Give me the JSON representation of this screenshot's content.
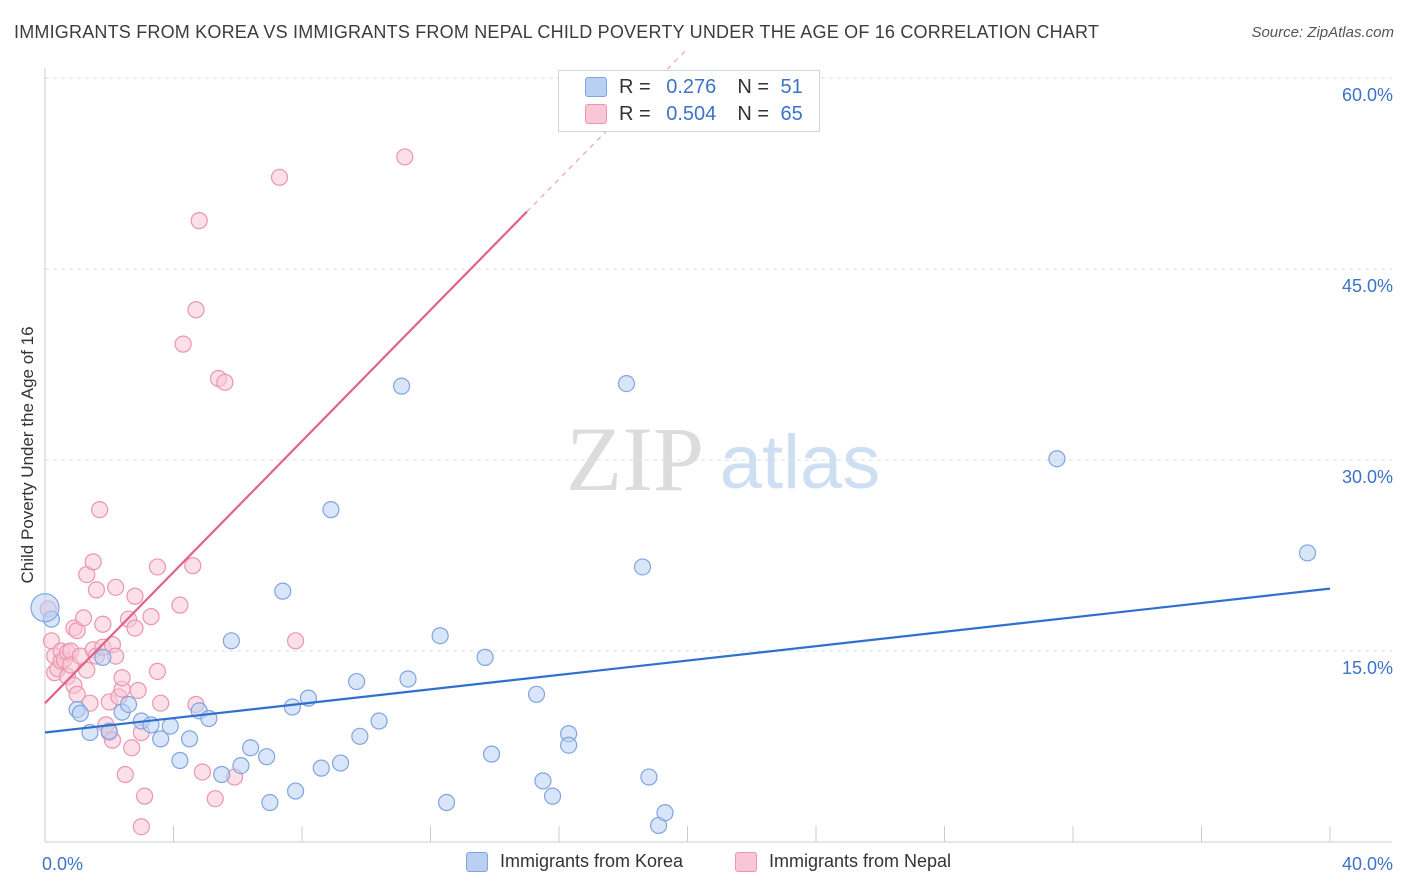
{
  "header": {
    "title": "IMMIGRANTS FROM KOREA VS IMMIGRANTS FROM NEPAL CHILD POVERTY UNDER THE AGE OF 16 CORRELATION CHART",
    "source": "Source: ZipAtlas.com"
  },
  "watermark": {
    "zip": "ZIP",
    "atlas": "atlas"
  },
  "legend": {
    "korea": {
      "r_label": "R =",
      "r_value": "0.276",
      "n_label": "N =",
      "n_value": "51"
    },
    "nepal": {
      "r_label": "R =",
      "r_value": "0.504",
      "n_label": "N =",
      "n_value": "65"
    }
  },
  "colors": {
    "korea_fill": "#b9d0f3",
    "korea_stroke": "#7fa5e0",
    "korea_line": "#2f6fcf",
    "nepal_fill": "#f8c6d6",
    "nepal_stroke": "#ec94b2",
    "nepal_line": "#e0628c",
    "tick_label": "#3b73c9"
  },
  "chart_data": {
    "type": "scatter",
    "title": "IMMIGRANTS FROM KOREA VS IMMIGRANTS FROM NEPAL CHILD POVERTY UNDER THE AGE OF 16 CORRELATION CHART",
    "xlabel": "",
    "ylabel": "Child Poverty Under the Age of 16",
    "xlim": [
      0,
      40
    ],
    "ylim": [
      0,
      60
    ],
    "x_tick_labels": [
      "0.0%",
      "40.0%"
    ],
    "y_ticks": [
      15,
      30,
      45,
      60
    ],
    "y_tick_labels": [
      "15.0%",
      "30.0%",
      "45.0%",
      "60.0%"
    ],
    "grid": true,
    "legend_position": "top-center",
    "series": [
      {
        "name": "Immigrants from Korea",
        "r": 0.276,
        "n": 51,
        "trend": {
          "x": [
            0,
            40
          ],
          "y": [
            8.6,
            19.9
          ]
        },
        "points": [
          [
            0.2,
            17.5
          ],
          [
            1.0,
            10.4
          ],
          [
            1.1,
            10.1
          ],
          [
            1.4,
            8.6
          ],
          [
            1.8,
            14.5
          ],
          [
            2.0,
            8.7
          ],
          [
            2.4,
            10.2
          ],
          [
            2.6,
            10.8
          ],
          [
            3.0,
            9.5
          ],
          [
            3.3,
            9.2
          ],
          [
            3.6,
            8.1
          ],
          [
            3.9,
            9.1
          ],
          [
            4.2,
            6.4
          ],
          [
            4.5,
            8.1
          ],
          [
            4.8,
            10.3
          ],
          [
            5.1,
            9.7
          ],
          [
            5.5,
            5.3
          ],
          [
            5.8,
            15.8
          ],
          [
            6.1,
            6.0
          ],
          [
            6.4,
            7.4
          ],
          [
            6.9,
            6.7
          ],
          [
            7.0,
            3.1
          ],
          [
            7.4,
            19.7
          ],
          [
            7.7,
            10.6
          ],
          [
            7.8,
            4.0
          ],
          [
            8.2,
            11.3
          ],
          [
            8.6,
            5.8
          ],
          [
            8.9,
            26.1
          ],
          [
            9.2,
            6.2
          ],
          [
            9.7,
            12.6
          ],
          [
            9.8,
            8.3
          ],
          [
            10.4,
            9.5
          ],
          [
            11.1,
            35.8
          ],
          [
            11.3,
            12.8
          ],
          [
            12.3,
            16.2
          ],
          [
            12.5,
            3.1
          ],
          [
            13.7,
            14.5
          ],
          [
            13.9,
            6.9
          ],
          [
            15.3,
            11.6
          ],
          [
            15.5,
            4.8
          ],
          [
            15.8,
            3.6
          ],
          [
            16.3,
            8.5
          ],
          [
            16.3,
            7.6
          ],
          [
            18.1,
            36.0
          ],
          [
            18.6,
            21.6
          ],
          [
            18.8,
            5.1
          ],
          [
            19.1,
            1.3
          ],
          [
            19.3,
            2.3
          ],
          [
            31.5,
            30.1
          ],
          [
            39.3,
            22.7
          ],
          [
            0.0,
            18.4
          ]
        ]
      },
      {
        "name": "Immigrants from Nepal",
        "r": 0.504,
        "n": 65,
        "trend": {
          "x": [
            0,
            15.0
          ],
          "y": [
            10.9,
            49.5
          ]
        },
        "trend_dashed": {
          "x": [
            15.0,
            20.0
          ],
          "y": [
            49.5,
            62.3
          ]
        },
        "points": [
          [
            0.1,
            18.3
          ],
          [
            0.2,
            15.8
          ],
          [
            0.3,
            13.3
          ],
          [
            0.3,
            14.6
          ],
          [
            0.4,
            13.6
          ],
          [
            0.5,
            14.2
          ],
          [
            0.5,
            15.0
          ],
          [
            0.6,
            14.3
          ],
          [
            0.7,
            13.0
          ],
          [
            0.7,
            14.9
          ],
          [
            0.8,
            15.0
          ],
          [
            0.8,
            13.9
          ],
          [
            0.9,
            12.3
          ],
          [
            0.9,
            16.8
          ],
          [
            1.0,
            11.6
          ],
          [
            1.0,
            16.6
          ],
          [
            1.1,
            14.6
          ],
          [
            1.2,
            17.6
          ],
          [
            1.3,
            13.5
          ],
          [
            1.3,
            21.0
          ],
          [
            1.4,
            10.9
          ],
          [
            1.5,
            15.1
          ],
          [
            1.5,
            22.0
          ],
          [
            1.6,
            14.6
          ],
          [
            1.6,
            19.8
          ],
          [
            1.7,
            26.1
          ],
          [
            1.8,
            17.1
          ],
          [
            1.8,
            15.3
          ],
          [
            1.9,
            9.2
          ],
          [
            2.0,
            8.6
          ],
          [
            2.0,
            11.0
          ],
          [
            2.1,
            15.5
          ],
          [
            2.1,
            8.0
          ],
          [
            2.2,
            14.6
          ],
          [
            2.2,
            20.0
          ],
          [
            2.3,
            11.4
          ],
          [
            2.4,
            12.0
          ],
          [
            2.4,
            12.9
          ],
          [
            2.5,
            5.3
          ],
          [
            2.6,
            17.5
          ],
          [
            2.7,
            7.4
          ],
          [
            2.8,
            16.8
          ],
          [
            2.8,
            19.3
          ],
          [
            2.9,
            11.9
          ],
          [
            3.0,
            8.6
          ],
          [
            3.0,
            1.2
          ],
          [
            3.1,
            3.6
          ],
          [
            3.3,
            17.7
          ],
          [
            3.5,
            13.4
          ],
          [
            3.5,
            21.6
          ],
          [
            3.6,
            10.9
          ],
          [
            4.2,
            18.6
          ],
          [
            4.3,
            39.1
          ],
          [
            4.6,
            21.7
          ],
          [
            4.7,
            10.8
          ],
          [
            4.7,
            41.8
          ],
          [
            4.8,
            48.8
          ],
          [
            4.9,
            5.5
          ],
          [
            5.3,
            3.4
          ],
          [
            5.4,
            36.4
          ],
          [
            5.6,
            36.1
          ],
          [
            5.9,
            5.1
          ],
          [
            7.3,
            52.2
          ],
          [
            7.8,
            15.8
          ],
          [
            11.2,
            53.8
          ]
        ]
      }
    ]
  },
  "bottom_legend": {
    "korea_label": "Immigrants from Korea",
    "nepal_label": "Immigrants from Nepal"
  }
}
